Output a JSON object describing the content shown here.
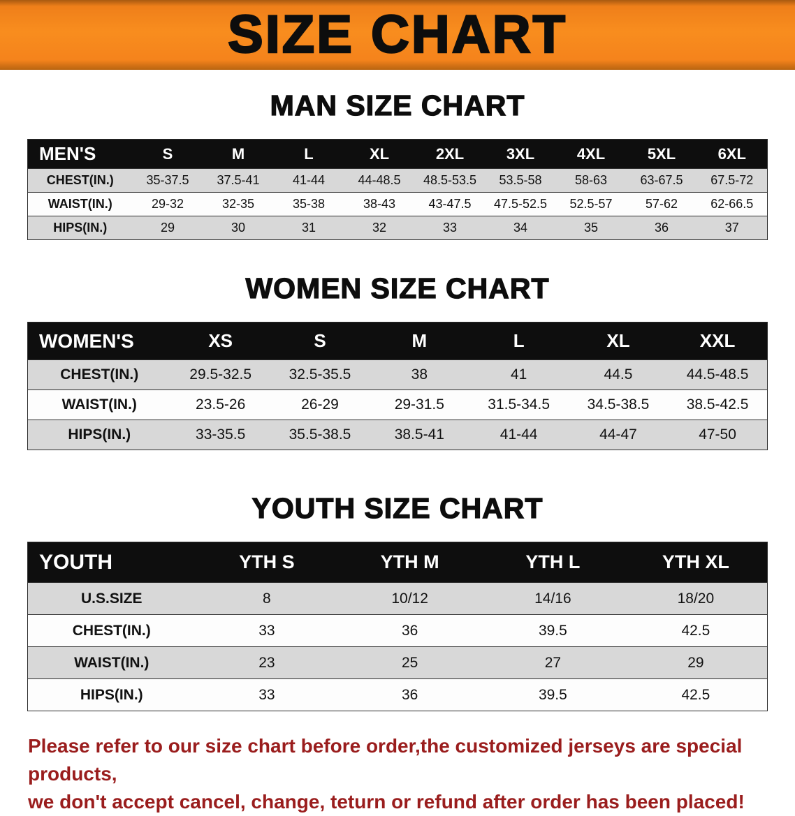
{
  "banner": {
    "title": "SIZE CHART"
  },
  "men": {
    "heading": "MAN SIZE CHART",
    "table": {
      "corner": "MEN'S",
      "sizes": [
        "S",
        "M",
        "L",
        "XL",
        "2XL",
        "3XL",
        "4XL",
        "5XL",
        "6XL"
      ],
      "rows": [
        {
          "label": "CHEST(IN.)",
          "values": [
            "35-37.5",
            "37.5-41",
            "41-44",
            "44-48.5",
            "48.5-53.5",
            "53.5-58",
            "58-63",
            "63-67.5",
            "67.5-72"
          ]
        },
        {
          "label": "WAIST(IN.)",
          "values": [
            "29-32",
            "32-35",
            "35-38",
            "38-43",
            "43-47.5",
            "47.5-52.5",
            "52.5-57",
            "57-62",
            "62-66.5"
          ]
        },
        {
          "label": "HIPS(IN.)",
          "values": [
            "29",
            "30",
            "31",
            "32",
            "33",
            "34",
            "35",
            "36",
            "37"
          ]
        }
      ]
    }
  },
  "women": {
    "heading": "WOMEN SIZE CHART",
    "table": {
      "corner": "WOMEN'S",
      "sizes": [
        "XS",
        "S",
        "M",
        "L",
        "XL",
        "XXL"
      ],
      "rows": [
        {
          "label": "CHEST(IN.)",
          "values": [
            "29.5-32.5",
            "32.5-35.5",
            "38",
            "41",
            "44.5",
            "44.5-48.5"
          ]
        },
        {
          "label": "WAIST(IN.)",
          "values": [
            "23.5-26",
            "26-29",
            "29-31.5",
            "31.5-34.5",
            "34.5-38.5",
            "38.5-42.5"
          ]
        },
        {
          "label": "HIPS(IN.)",
          "values": [
            "33-35.5",
            "35.5-38.5",
            "38.5-41",
            "41-44",
            "44-47",
            "47-50"
          ]
        }
      ]
    }
  },
  "youth": {
    "heading": "YOUTH SIZE CHART",
    "table": {
      "corner": "YOUTH",
      "sizes": [
        "YTH S",
        "YTH M",
        "YTH L",
        "YTH XL"
      ],
      "rows": [
        {
          "label": "U.S.SIZE",
          "values": [
            "8",
            "10/12",
            "14/16",
            "18/20"
          ]
        },
        {
          "label": "CHEST(IN.)",
          "values": [
            "33",
            "36",
            "39.5",
            "42.5"
          ]
        },
        {
          "label": "WAIST(IN.)",
          "values": [
            "23",
            "25",
            "27",
            "29"
          ]
        },
        {
          "label": "HIPS(IN.)",
          "values": [
            "33",
            "36",
            "39.5",
            "42.5"
          ]
        }
      ]
    }
  },
  "disclaimer": {
    "line1": "Please refer to our size chart before order,the customized jerseys are special products,",
    "line2": "we don't accept cancel, change, teturn or refund after order has been placed!"
  },
  "colors": {
    "banner_orange": "#f5831c",
    "table_header_bg": "#0e0e0e",
    "row_stripe_gray": "#d8d8d8",
    "disclaimer_red": "#9a1d1d"
  }
}
